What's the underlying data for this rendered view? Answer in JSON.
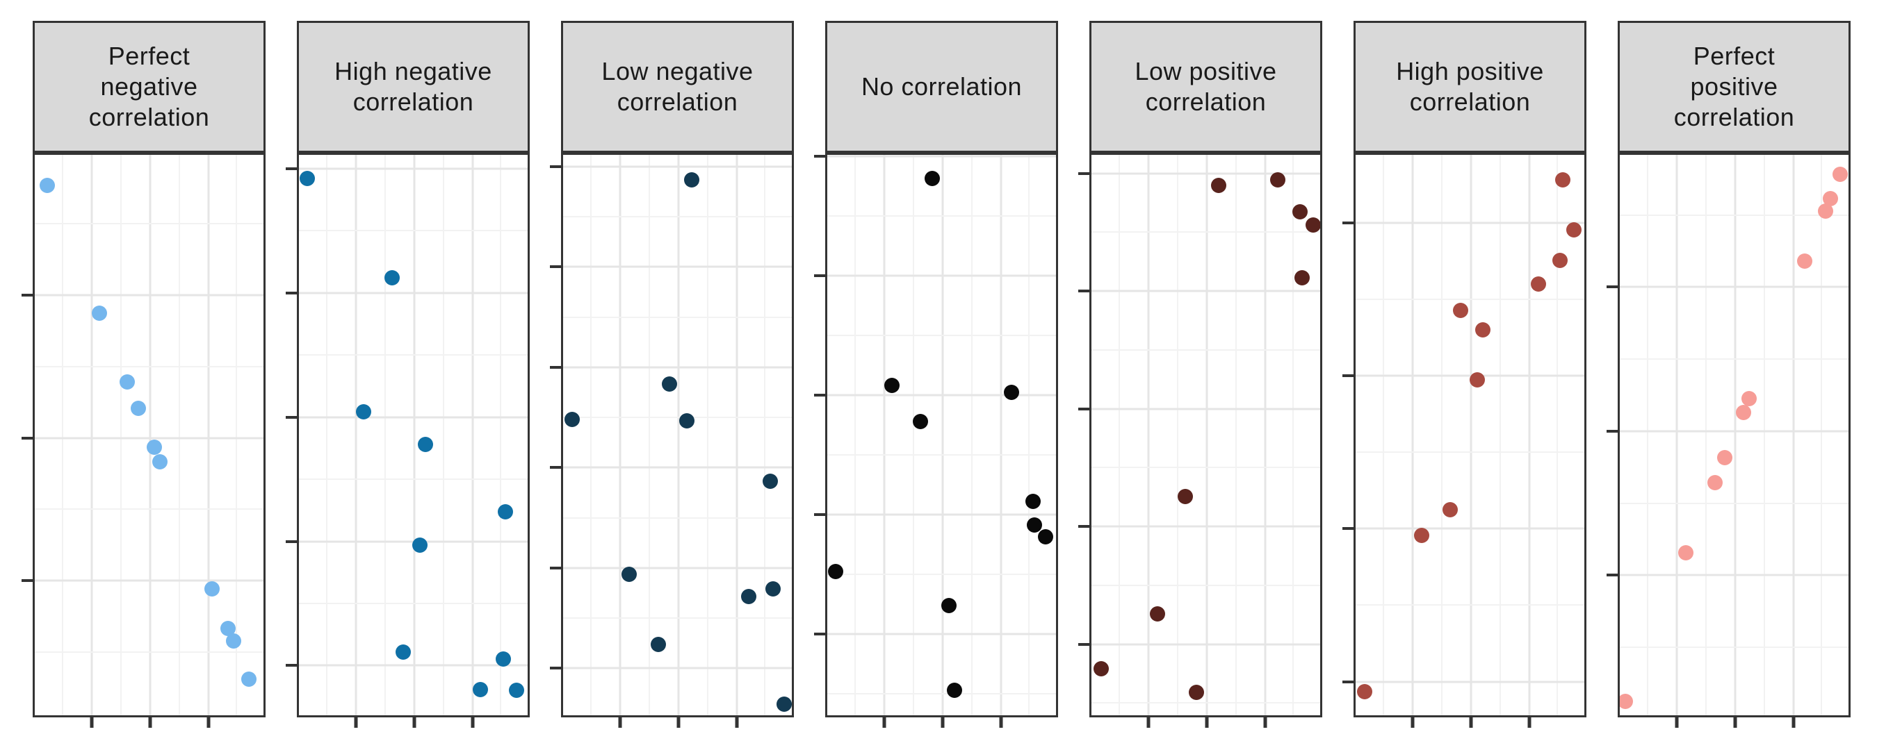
{
  "figure": {
    "kind": "faceted-scatter-correlation-examples",
    "background": "#ffffff",
    "strip_fill": "#d9d9d9",
    "strip_text_color": "#1a1a1a",
    "panel_border_color": "#343434",
    "tick_color": "#333333",
    "grid_major_color": "#e5e5e5",
    "grid_minor_color": "#f2f2f2"
  },
  "chart_data": [
    {
      "type": "scatter",
      "title": "Perfect\nnegative\ncorrelation",
      "color": "#74b6ed",
      "x": [
        0.055,
        0.283,
        0.405,
        0.452,
        0.522,
        0.548,
        0.775,
        0.845,
        0.868,
        0.935
      ],
      "y": [
        0.945,
        0.717,
        0.595,
        0.548,
        0.478,
        0.452,
        0.225,
        0.155,
        0.132,
        0.065
      ],
      "x_ticks": [
        0.25,
        0.505,
        0.76
      ],
      "y_ticks": [
        0.24,
        0.495,
        0.75
      ],
      "xlim": [
        0,
        1
      ],
      "ylim": [
        0,
        1
      ],
      "xlabel": "",
      "ylabel": "",
      "tick_labels": "none",
      "grid": true,
      "legend": "none"
    },
    {
      "type": "scatter",
      "title": "High negative\ncorrelation",
      "color": "#0f70a6",
      "x": [
        0.035,
        0.408,
        0.284,
        0.552,
        0.903,
        0.53,
        0.456,
        0.895,
        0.794,
        0.95
      ],
      "y": [
        0.958,
        0.781,
        0.542,
        0.483,
        0.363,
        0.304,
        0.113,
        0.1,
        0.046,
        0.044
      ],
      "x_ticks": [
        0.25,
        0.505,
        0.76
      ],
      "y_ticks": [
        0.089,
        0.31,
        0.532,
        0.754,
        0.975
      ],
      "xlim": [
        0,
        1
      ],
      "ylim": [
        0,
        1
      ],
      "xlabel": "",
      "ylabel": "",
      "tick_labels": "none",
      "grid": true,
      "legend": "none"
    },
    {
      "type": "scatter",
      "title": "Low negative\ncorrelation",
      "color": "#133a52",
      "x": [
        0.563,
        0.465,
        0.04,
        0.541,
        0.905,
        0.289,
        0.918,
        0.812,
        0.417,
        0.968
      ],
      "y": [
        0.956,
        0.591,
        0.528,
        0.526,
        0.417,
        0.252,
        0.225,
        0.212,
        0.127,
        0.02
      ],
      "x_ticks": [
        0.25,
        0.505,
        0.76
      ],
      "y_ticks": [
        0.084,
        0.263,
        0.442,
        0.621,
        0.8,
        0.979
      ],
      "xlim": [
        0,
        1
      ],
      "ylim": [
        0,
        1
      ],
      "xlabel": "",
      "ylabel": "",
      "tick_labels": "none",
      "grid": true,
      "legend": "none"
    },
    {
      "type": "scatter",
      "title": "No correlation",
      "color": "#0a0a0a",
      "x": [
        0.458,
        0.283,
        0.805,
        0.408,
        0.9,
        0.905,
        0.955,
        0.035,
        0.532,
        0.555
      ],
      "y": [
        0.958,
        0.588,
        0.576,
        0.524,
        0.382,
        0.34,
        0.319,
        0.256,
        0.196,
        0.045
      ],
      "x_ticks": [
        0.25,
        0.505,
        0.76
      ],
      "y_ticks": [
        0.145,
        0.358,
        0.571,
        0.784,
        0.997
      ],
      "xlim": [
        0,
        1
      ],
      "ylim": [
        0,
        1
      ],
      "xlabel": "",
      "ylabel": "",
      "tick_labels": "none",
      "grid": true,
      "legend": "none"
    },
    {
      "type": "scatter",
      "title": "Low positive\ncorrelation",
      "color": "#58231d",
      "x": [
        0.815,
        0.557,
        0.913,
        0.97,
        0.922,
        0.411,
        0.289,
        0.043,
        0.46
      ],
      "y": [
        0.956,
        0.946,
        0.899,
        0.875,
        0.781,
        0.39,
        0.181,
        0.083,
        0.041
      ],
      "x_ticks": [
        0.25,
        0.505,
        0.76
      ],
      "y_ticks": [
        0.127,
        0.337,
        0.547,
        0.757,
        0.967
      ],
      "xlim": [
        0,
        1
      ],
      "ylim": [
        0,
        1
      ],
      "xlabel": "",
      "ylabel": "",
      "tick_labels": "none",
      "grid": true,
      "legend": "none"
    },
    {
      "type": "scatter",
      "title": "High positive\ncorrelation",
      "color": "#a84a40",
      "x": [
        0.905,
        0.955,
        0.895,
        0.8,
        0.458,
        0.557,
        0.532,
        0.413,
        0.289,
        0.04
      ],
      "y": [
        0.956,
        0.866,
        0.812,
        0.77,
        0.722,
        0.688,
        0.599,
        0.367,
        0.321,
        0.042
      ],
      "x_ticks": [
        0.25,
        0.505,
        0.76
      ],
      "y_ticks": [
        0.06,
        0.333,
        0.606,
        0.879
      ],
      "xlim": [
        0,
        1
      ],
      "ylim": [
        0,
        1
      ],
      "xlabel": "",
      "ylabel": "",
      "tick_labels": "none",
      "grid": true,
      "legend": "none"
    },
    {
      "type": "scatter",
      "title": "Perfect\npositive\ncorrelation",
      "color": "#f69c96",
      "x": [
        0.025,
        0.29,
        0.415,
        0.46,
        0.54,
        0.565,
        0.81,
        0.9,
        0.922,
        0.965
      ],
      "y": [
        0.025,
        0.29,
        0.415,
        0.46,
        0.54,
        0.565,
        0.81,
        0.9,
        0.922,
        0.965
      ],
      "x_ticks": [
        0.25,
        0.505,
        0.76
      ],
      "y_ticks": [
        0.25,
        0.507,
        0.764
      ],
      "xlim": [
        0,
        1
      ],
      "ylim": [
        0,
        1
      ],
      "xlabel": "",
      "ylabel": "",
      "tick_labels": "none",
      "grid": true,
      "legend": "none"
    }
  ]
}
